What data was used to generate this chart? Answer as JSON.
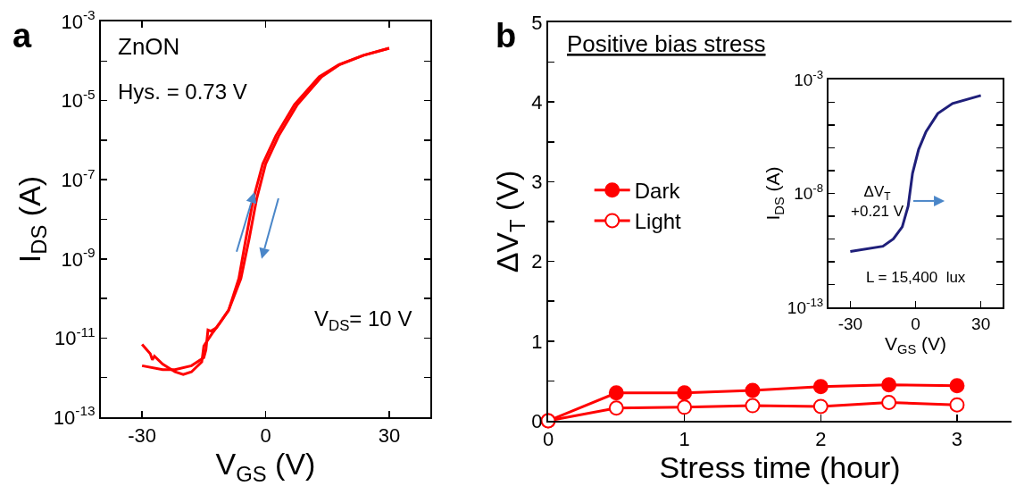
{
  "chart_data": [
    {
      "type": "line",
      "xlabel": "V$_{GS}$ (V)",
      "ylabel": "I$_{DS}$ (A)",
      "log": "y",
      "annotations": [
        "a",
        "ZnON",
        "Hys. = 0.73 V",
        "V$_{DS}$= 10 V"
      ],
      "xlim": [
        -40,
        40
      ],
      "xticks": [
        -30,
        0,
        30
      ],
      "ylim": [
        1e-13,
        0.001
      ],
      "yticks": [
        {
          "value": 1e-13,
          "label": "10$^{-13}$"
        },
        {
          "value": 1e-12,
          "label": null
        },
        {
          "value": 1e-11,
          "label": "10$^{-11}$"
        },
        {
          "value": 1e-10,
          "label": null
        },
        {
          "value": 1e-09,
          "label": "10$^{-9}$"
        },
        {
          "value": 1e-08,
          "label": null
        },
        {
          "value": 1e-07,
          "label": "10$^{-7}$"
        },
        {
          "value": 1e-06,
          "label": null
        },
        {
          "value": 1e-05,
          "label": "10$^{-5}$"
        },
        {
          "value": 0.0001,
          "label": null
        },
        {
          "value": 0.001,
          "label": "10$^{-3}$"
        }
      ],
      "series": [
        {
          "color": "#ff0000",
          "x": [
            -30,
            -28,
            -27.5,
            -27,
            -25,
            -22,
            -20,
            -18,
            -15.5,
            -15,
            -13,
            -11,
            -9,
            -6.5,
            -4.8,
            -3,
            -0.7,
            2.5,
            7,
            13,
            17.8,
            23.8,
            30
          ],
          "values": [
            6.9e-12,
            4e-12,
            2.8e-12,
            3.5e-12,
            2.2e-12,
            1.4e-12,
            1.2e-12,
            1.4e-12,
            2.5e-12,
            6.3e-12,
            1.3e-11,
            2.5e-11,
            5e-11,
            3.2e-10,
            3.2e-09,
            3.2e-08,
            2.5e-07,
            1.3e-06,
            7.9e-06,
            4e-05,
            8.1e-05,
            0.00014,
            0.00021
          ]
        },
        {
          "color": "#ff0000",
          "x": [
            -30,
            -25,
            -22,
            -18,
            -15,
            -14.5,
            -14,
            -13.3,
            -12,
            -9,
            -6,
            -4,
            -2.2,
            0,
            3.2,
            7.7,
            13.6,
            18,
            23.8,
            30
          ],
          "values": [
            2e-12,
            1.6e-12,
            1.6e-12,
            2e-12,
            3.2e-12,
            5e-12,
            1.6e-11,
            1.5e-11,
            1.8e-11,
            5e-11,
            3.2e-10,
            3.2e-09,
            3.2e-08,
            2.5e-07,
            1.3e-06,
            7.9e-06,
            4e-05,
            8.1e-05,
            0.00014,
            0.00021
          ]
        }
      ]
    },
    {
      "type": "line",
      "xlabel": "Stress time (hour)",
      "ylabel": "ΔV$_{T}$ (V)",
      "legend": "left",
      "annotations": [
        "b",
        "Positive bias stress"
      ],
      "x": [
        0,
        0.5,
        1,
        1.5,
        2,
        2.5,
        3
      ],
      "xlim": [
        0,
        3.4
      ],
      "xticks": [
        0,
        1,
        2,
        3
      ],
      "ylim": [
        0,
        5
      ],
      "yticks": [
        0,
        {
          "value": 0.5,
          "label": null
        },
        1,
        {
          "value": 1.5,
          "label": null
        },
        2,
        {
          "value": 2.5,
          "label": null
        },
        3,
        {
          "value": 3.5,
          "label": null
        },
        4,
        {
          "value": 4.5,
          "label": null
        },
        5
      ],
      "series": [
        {
          "name": "Dark",
          "color": "#ff0000",
          "marker": "circle",
          "values": [
            0,
            0.35,
            0.35,
            0.38,
            0.43,
            0.45,
            0.44
          ]
        },
        {
          "name": "Light",
          "color": "#ff0000",
          "marker": "circle-open",
          "values": [
            0,
            0.16,
            0.17,
            0.19,
            0.18,
            0.23,
            0.2
          ]
        }
      ]
    },
    {
      "type": "line",
      "xlabel": "V$_{GS}$ (V)",
      "ylabel": "I$_{DS}$ (A)",
      "log": "y",
      "annotations": [
        "ΔV$_{T}$\n+0.21 V",
        "L = 15,400  lux"
      ],
      "xlim": [
        -40,
        40
      ],
      "xticks": [
        -30,
        0,
        30
      ],
      "ylim": [
        1e-13,
        0.001
      ],
      "yticks": [
        {
          "value": 1e-13,
          "label": "10$^{-13}$"
        },
        {
          "value": 1e-12,
          "label": null
        },
        {
          "value": 1e-11,
          "label": null
        },
        {
          "value": 1e-10,
          "label": null
        },
        {
          "value": 1e-09,
          "label": null
        },
        {
          "value": 1e-08,
          "label": "10$^{-8}$"
        },
        {
          "value": 1e-07,
          "label": null
        },
        {
          "value": 1e-06,
          "label": null
        },
        {
          "value": 1e-05,
          "label": null
        },
        {
          "value": 0.0001,
          "label": null
        },
        {
          "value": 0.001,
          "label": "10$^{-3}$"
        }
      ],
      "series": [
        {
          "color": "#1f1f7a",
          "x": [
            -30,
            -15,
            -10.2,
            -6.1,
            -3.4,
            -1.4,
            1.4,
            4.8,
            10.2,
            17,
            30
          ],
          "values": [
            2.8e-11,
            4.8e-11,
            1e-10,
            3.4e-10,
            2.8e-09,
            7.6e-08,
            8.5e-07,
            5.1e-06,
            3.2e-05,
            8.9e-05,
            0.0002
          ]
        }
      ]
    }
  ]
}
